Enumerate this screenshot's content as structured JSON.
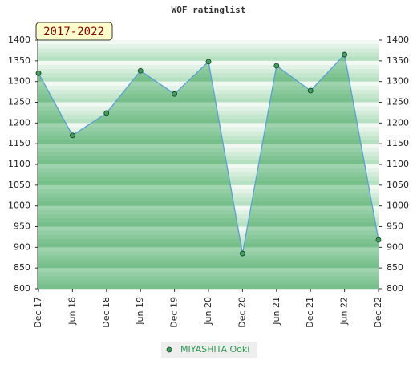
{
  "chart_data": {
    "type": "line",
    "title": "WOF ratinglist",
    "subtitle": "2017-2022",
    "categories": [
      "Dec 17",
      "Jun 18",
      "Dec 18",
      "Jun 19",
      "Dec 19",
      "Jun 20",
      "Dec 20",
      "Jun 21",
      "Dec 21",
      "Jun 22",
      "Dec 22"
    ],
    "series": [
      {
        "name": "MIYASHITA Ooki",
        "color": "#5a9fd4",
        "marker_color": "#3f9f5f",
        "values": [
          1320,
          1170,
          1224,
          1326,
          1270,
          1348,
          885,
          1338,
          1278,
          1365,
          918
        ]
      }
    ],
    "ylim": [
      800,
      1400
    ],
    "yticks": [
      800,
      850,
      900,
      950,
      1000,
      1050,
      1100,
      1150,
      1200,
      1250,
      1300,
      1350,
      1400
    ],
    "y2lim": [
      800,
      1400
    ],
    "y2ticks": [
      800,
      850,
      900,
      950,
      1000,
      1050,
      1100,
      1150,
      1200,
      1250,
      1300,
      1350,
      1400
    ]
  }
}
